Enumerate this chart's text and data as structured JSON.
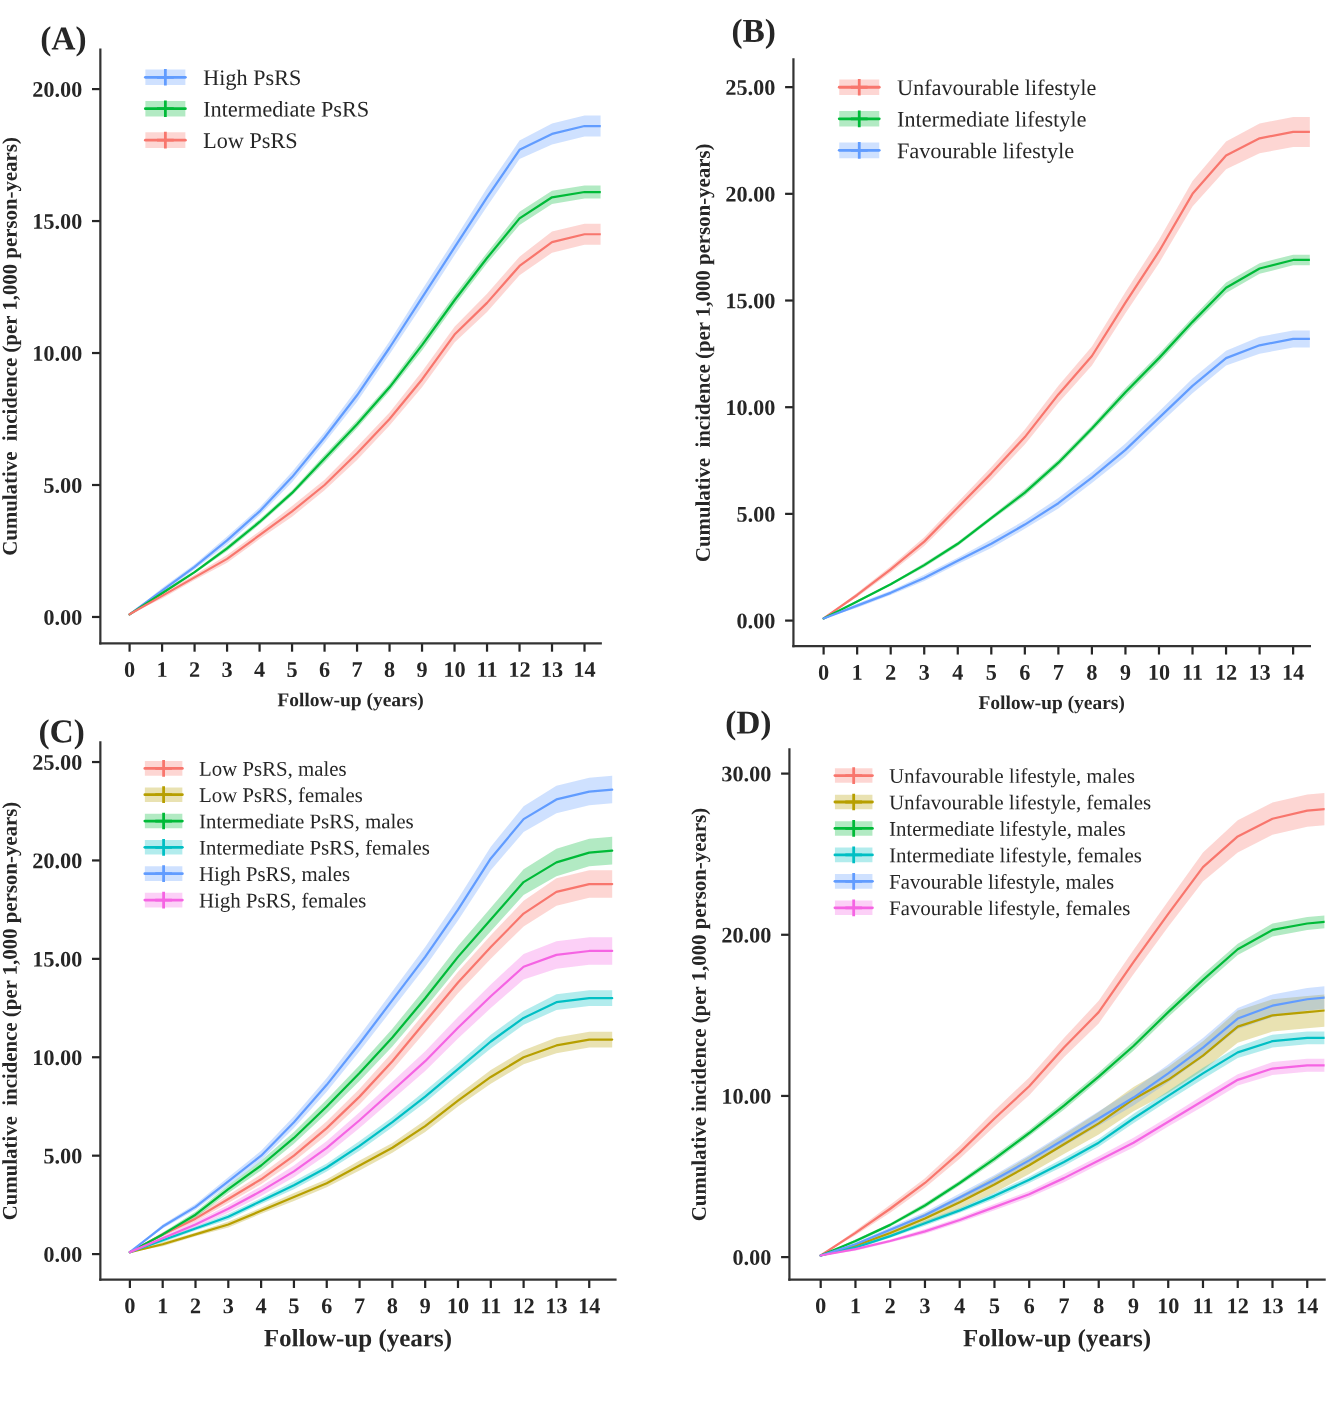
{
  "chart_data": [
    {
      "type": "line",
      "title": "(A)",
      "xlabel": "Follow-up (years)",
      "ylabel": "Cumulative  incidence (per 1,000 person-years)",
      "legend": "top left",
      "x": [
        0,
        1,
        2,
        3,
        4,
        5,
        6,
        7,
        8,
        9,
        10,
        11,
        12,
        13,
        14,
        14.5
      ],
      "xlim": [
        -0.9,
        14.5
      ],
      "xticks": [
        0,
        1,
        2,
        3,
        4,
        5,
        6,
        7,
        8,
        9,
        10,
        11,
        12,
        13,
        14
      ],
      "ylim": [
        -1,
        21.5
      ],
      "yticks": [
        {
          "value": 0,
          "label": "0.00"
        },
        {
          "value": 5,
          "label": "5.00"
        },
        {
          "value": 10,
          "label": "10.00"
        },
        {
          "value": 15,
          "label": "15.00"
        },
        {
          "value": 20,
          "label": "20.00"
        }
      ],
      "series": [
        {
          "name": "High PsRS",
          "color": "#619cff",
          "values": [
            0.1,
            1.0,
            1.9,
            2.9,
            4.0,
            5.3,
            6.8,
            8.4,
            10.2,
            12.1,
            14.0,
            15.9,
            17.7,
            18.3,
            18.6,
            18.6
          ],
          "lower": [
            0.1,
            0.9,
            1.8,
            2.75,
            3.85,
            5.1,
            6.6,
            8.15,
            9.95,
            11.8,
            13.7,
            15.55,
            17.35,
            17.9,
            18.2,
            18.2
          ],
          "upper": [
            0.1,
            1.1,
            2.0,
            3.05,
            4.15,
            5.5,
            7.0,
            8.65,
            10.45,
            12.4,
            14.3,
            16.25,
            18.05,
            18.7,
            19.0,
            19.0
          ]
        },
        {
          "name": "Intermediate PsRS",
          "color": "#00ba38",
          "values": [
            0.1,
            0.9,
            1.7,
            2.6,
            3.6,
            4.7,
            6.0,
            7.3,
            8.7,
            10.3,
            12.0,
            13.6,
            15.1,
            15.9,
            16.1,
            16.1
          ],
          "lower": [
            0.1,
            0.85,
            1.65,
            2.5,
            3.5,
            4.6,
            5.85,
            7.15,
            8.55,
            10.1,
            11.8,
            13.4,
            14.85,
            15.65,
            15.85,
            15.85
          ],
          "upper": [
            0.1,
            0.95,
            1.75,
            2.7,
            3.7,
            4.8,
            6.15,
            7.45,
            8.85,
            10.5,
            12.2,
            13.8,
            15.35,
            16.15,
            16.35,
            16.35
          ]
        },
        {
          "name": "Low PsRS",
          "color": "#f8766d",
          "values": [
            0.1,
            0.8,
            1.5,
            2.2,
            3.1,
            4.0,
            5.0,
            6.2,
            7.5,
            9.0,
            10.7,
            11.9,
            13.3,
            14.2,
            14.5,
            14.5
          ],
          "lower": [
            0.1,
            0.7,
            1.4,
            2.05,
            2.95,
            3.8,
            4.8,
            5.95,
            7.25,
            8.7,
            10.4,
            11.55,
            12.95,
            13.8,
            14.1,
            14.1
          ],
          "upper": [
            0.1,
            0.9,
            1.6,
            2.35,
            3.25,
            4.2,
            5.2,
            6.45,
            7.75,
            9.3,
            11.0,
            12.25,
            13.65,
            14.6,
            14.9,
            14.9
          ]
        }
      ]
    },
    {
      "type": "line",
      "title": "(B)",
      "xlabel": "Follow-up (years)",
      "ylabel": "Cumulative  incidence (per 1,000 person-years)",
      "legend": "top left",
      "x": [
        0,
        1,
        2,
        3,
        4,
        5,
        6,
        7,
        8,
        9,
        10,
        11,
        12,
        13,
        14,
        14.5
      ],
      "xlim": [
        -0.9,
        14.5
      ],
      "xticks": [
        0,
        1,
        2,
        3,
        4,
        5,
        6,
        7,
        8,
        9,
        10,
        11,
        12,
        13,
        14
      ],
      "ylim": [
        -1.2,
        26.3
      ],
      "yticks": [
        {
          "value": 0,
          "label": "0.00"
        },
        {
          "value": 5,
          "label": "5.00"
        },
        {
          "value": 10,
          "label": "10.00"
        },
        {
          "value": 15,
          "label": "15.00"
        },
        {
          "value": 20,
          "label": "20.00"
        },
        {
          "value": 25,
          "label": "25.00"
        }
      ],
      "series": [
        {
          "name": "Unfavourable lifestyle",
          "color": "#f8766d",
          "values": [
            0.1,
            1.2,
            2.4,
            3.7,
            5.3,
            6.9,
            8.6,
            10.6,
            12.4,
            14.9,
            17.3,
            20.0,
            21.8,
            22.6,
            22.9,
            22.9
          ],
          "lower": [
            0.1,
            1.1,
            2.25,
            3.5,
            5.05,
            6.6,
            8.25,
            10.2,
            11.95,
            14.4,
            16.75,
            19.4,
            21.15,
            21.9,
            22.2,
            22.2
          ],
          "upper": [
            0.1,
            1.3,
            2.55,
            3.9,
            5.55,
            7.2,
            8.95,
            11.0,
            12.85,
            15.4,
            17.85,
            20.6,
            22.45,
            23.3,
            23.6,
            23.6
          ]
        },
        {
          "name": "Intermediate lifestyle",
          "color": "#00ba38",
          "values": [
            0.1,
            0.9,
            1.7,
            2.6,
            3.6,
            4.8,
            6.0,
            7.4,
            9.0,
            10.7,
            12.3,
            14.0,
            15.6,
            16.5,
            16.9,
            16.9
          ],
          "lower": [
            0.1,
            0.85,
            1.65,
            2.5,
            3.5,
            4.7,
            5.85,
            7.25,
            8.85,
            10.5,
            12.1,
            13.8,
            15.35,
            16.25,
            16.65,
            16.65
          ],
          "upper": [
            0.1,
            0.95,
            1.75,
            2.7,
            3.7,
            4.9,
            6.15,
            7.55,
            9.15,
            10.9,
            12.5,
            14.2,
            15.85,
            16.75,
            17.15,
            17.15
          ]
        },
        {
          "name": "Favourable lifestyle",
          "color": "#619cff",
          "values": [
            0.1,
            0.7,
            1.3,
            2.0,
            2.8,
            3.6,
            4.5,
            5.5,
            6.7,
            8.0,
            9.5,
            11.0,
            12.3,
            12.9,
            13.2,
            13.2
          ],
          "lower": [
            0.1,
            0.6,
            1.2,
            1.85,
            2.65,
            3.4,
            4.3,
            5.25,
            6.45,
            7.7,
            9.2,
            10.65,
            11.95,
            12.5,
            12.8,
            12.8
          ],
          "upper": [
            0.1,
            0.8,
            1.4,
            2.15,
            2.95,
            3.8,
            4.7,
            5.75,
            6.95,
            8.3,
            9.8,
            11.35,
            12.65,
            13.3,
            13.6,
            13.6
          ]
        }
      ]
    },
    {
      "type": "line",
      "title": "(C)",
      "xlabel": "Follow-up (years)",
      "ylabel": "Cumulative  incidence (per 1,000 person-years)",
      "legend": "top left",
      "x": [
        0,
        1,
        2,
        3,
        4,
        5,
        6,
        7,
        8,
        9,
        10,
        11,
        12,
        13,
        14,
        14.7
      ],
      "xlim": [
        -0.9,
        14.8
      ],
      "xticks": [
        0,
        1,
        2,
        3,
        4,
        5,
        6,
        7,
        8,
        9,
        10,
        11,
        12,
        13,
        14
      ],
      "ylim": [
        -1.3,
        26
      ],
      "yticks": [
        {
          "value": 0,
          "label": "0.00"
        },
        {
          "value": 5,
          "label": "5.00"
        },
        {
          "value": 10,
          "label": "10.00"
        },
        {
          "value": 15,
          "label": "15.00"
        },
        {
          "value": 20,
          "label": "20.00"
        },
        {
          "value": 25,
          "label": "25.00"
        }
      ],
      "series": [
        {
          "name": "Low PsRS, males",
          "color": "#f8766d",
          "values": [
            0.1,
            1.0,
            1.8,
            2.8,
            3.8,
            5.0,
            6.4,
            8.0,
            9.8,
            11.8,
            13.8,
            15.6,
            17.3,
            18.4,
            18.8,
            18.8
          ],
          "lower": [
            0.1,
            0.9,
            1.65,
            2.6,
            3.55,
            4.7,
            6.05,
            7.6,
            9.35,
            11.3,
            13.25,
            15.0,
            16.65,
            17.7,
            18.1,
            18.1
          ],
          "upper": [
            0.1,
            1.1,
            1.95,
            3.0,
            4.05,
            5.3,
            6.75,
            8.4,
            10.25,
            12.3,
            14.35,
            16.2,
            17.95,
            19.1,
            19.5,
            19.5
          ]
        },
        {
          "name": "Low PsRS, females",
          "color": "#b79f00",
          "values": [
            0.1,
            0.5,
            1.0,
            1.5,
            2.2,
            2.9,
            3.6,
            4.5,
            5.4,
            6.5,
            7.8,
            9.0,
            10.0,
            10.6,
            10.9,
            10.9
          ],
          "lower": [
            0.1,
            0.4,
            0.9,
            1.35,
            2.05,
            2.7,
            3.4,
            4.25,
            5.15,
            6.2,
            7.5,
            8.65,
            9.65,
            10.2,
            10.5,
            10.5
          ],
          "upper": [
            0.1,
            0.6,
            1.1,
            1.65,
            2.35,
            3.1,
            3.8,
            4.75,
            5.65,
            6.8,
            8.1,
            9.35,
            10.35,
            11.0,
            11.3,
            11.3
          ]
        },
        {
          "name": "Intermediate PsRS, males",
          "color": "#00ba38",
          "values": [
            0.1,
            1.0,
            2.0,
            3.3,
            4.5,
            5.9,
            7.5,
            9.2,
            11.0,
            13.0,
            15.1,
            17.0,
            18.9,
            19.9,
            20.4,
            20.5
          ],
          "lower": [
            0.1,
            0.9,
            1.85,
            3.1,
            4.25,
            5.6,
            7.15,
            8.8,
            10.55,
            12.5,
            14.55,
            16.4,
            18.25,
            19.2,
            19.7,
            19.8
          ],
          "upper": [
            0.1,
            1.1,
            2.15,
            3.5,
            4.75,
            6.2,
            7.85,
            9.6,
            11.45,
            13.5,
            15.65,
            17.6,
            19.55,
            20.6,
            21.1,
            21.2
          ]
        },
        {
          "name": "Intermediate PsRS, females",
          "color": "#00bfc4",
          "values": [
            0.1,
            0.7,
            1.3,
            1.9,
            2.7,
            3.5,
            4.4,
            5.5,
            6.7,
            8.0,
            9.4,
            10.8,
            12.0,
            12.8,
            13.0,
            13.0
          ],
          "lower": [
            0.1,
            0.6,
            1.2,
            1.75,
            2.55,
            3.3,
            4.2,
            5.25,
            6.45,
            7.7,
            9.1,
            10.45,
            11.65,
            12.4,
            12.6,
            12.6
          ],
          "upper": [
            0.1,
            0.8,
            1.4,
            2.05,
            2.85,
            3.7,
            4.6,
            5.75,
            6.95,
            8.3,
            9.7,
            11.15,
            12.35,
            13.2,
            13.4,
            13.4
          ]
        },
        {
          "name": "High PsRS, males",
          "color": "#619cff",
          "values": [
            0.1,
            1.4,
            2.4,
            3.7,
            5.0,
            6.7,
            8.6,
            10.7,
            12.9,
            15.1,
            17.5,
            20.1,
            22.1,
            23.1,
            23.5,
            23.6
          ],
          "lower": [
            0.1,
            1.3,
            2.25,
            3.5,
            4.75,
            6.4,
            8.25,
            10.3,
            12.45,
            14.6,
            16.95,
            19.5,
            21.45,
            22.4,
            22.8,
            22.9
          ],
          "upper": [
            0.1,
            1.5,
            2.55,
            3.9,
            5.25,
            7.0,
            8.95,
            11.1,
            13.35,
            15.6,
            18.05,
            20.7,
            22.75,
            23.8,
            24.2,
            24.3
          ]
        },
        {
          "name": "High PsRS, females",
          "color": "#f564e3",
          "values": [
            0.1,
            0.8,
            1.5,
            2.3,
            3.2,
            4.2,
            5.4,
            6.8,
            8.3,
            9.8,
            11.5,
            13.1,
            14.6,
            15.2,
            15.4,
            15.4
          ],
          "lower": [
            0.1,
            0.7,
            1.35,
            2.1,
            2.95,
            3.9,
            5.05,
            6.4,
            7.85,
            9.3,
            10.95,
            12.5,
            13.95,
            14.5,
            14.7,
            14.7
          ],
          "upper": [
            0.1,
            0.9,
            1.65,
            2.5,
            3.45,
            4.5,
            5.75,
            7.2,
            8.75,
            10.3,
            12.05,
            13.7,
            15.25,
            15.9,
            16.1,
            16.1
          ]
        }
      ]
    },
    {
      "type": "line",
      "title": "(D)",
      "xlabel": "Follow-up (years)",
      "ylabel": "Cumulative incidence (per 1,000 person-years)",
      "legend": "top left",
      "x": [
        0,
        1,
        2,
        3,
        4,
        5,
        6,
        7,
        8,
        9,
        10,
        11,
        12,
        13,
        14,
        14.5
      ],
      "xlim": [
        -0.9,
        14.5
      ],
      "xticks": [
        0,
        1,
        2,
        3,
        4,
        5,
        6,
        7,
        8,
        9,
        10,
        11,
        12,
        13,
        14
      ],
      "ylim": [
        -1.4,
        31.5
      ],
      "yticks": [
        {
          "value": 0,
          "label": "0.00"
        },
        {
          "value": 10,
          "label": "10.00"
        },
        {
          "value": 20,
          "label": "20.00"
        },
        {
          "value": 30,
          "label": "30.00"
        }
      ],
      "series": [
        {
          "name": "Unfavourable lifestyle, males",
          "color": "#f8766d",
          "values": [
            0.1,
            1.5,
            3.0,
            4.6,
            6.5,
            8.6,
            10.6,
            13.0,
            15.2,
            18.3,
            21.3,
            24.2,
            26.1,
            27.2,
            27.7,
            27.8
          ],
          "lower": [
            0.1,
            1.35,
            2.75,
            4.3,
            6.1,
            8.1,
            10.05,
            12.4,
            14.5,
            17.55,
            20.5,
            23.3,
            25.1,
            26.2,
            26.7,
            26.8
          ],
          "upper": [
            0.1,
            1.65,
            3.25,
            4.9,
            6.9,
            9.1,
            11.15,
            13.6,
            15.9,
            19.05,
            22.1,
            25.1,
            27.1,
            28.2,
            28.7,
            28.8
          ]
        },
        {
          "name": "Unfavourable lifestyle, females",
          "color": "#b79f00",
          "values": [
            0.1,
            0.7,
            1.5,
            2.4,
            3.4,
            4.5,
            5.7,
            7.0,
            8.3,
            9.8,
            11.0,
            12.5,
            14.3,
            15.0,
            15.2,
            15.3
          ],
          "lower": [
            0.1,
            0.55,
            1.25,
            2.1,
            3.0,
            4.0,
            5.15,
            6.4,
            7.6,
            9.05,
            10.2,
            11.6,
            13.3,
            14.0,
            14.2,
            14.3
          ],
          "upper": [
            0.1,
            0.85,
            1.75,
            2.7,
            3.8,
            5.0,
            6.25,
            7.6,
            9.0,
            10.55,
            11.8,
            13.4,
            15.3,
            16.0,
            16.2,
            16.3
          ]
        },
        {
          "name": "Intermediate lifestyle, males",
          "color": "#00ba38",
          "values": [
            0.1,
            1.0,
            2.0,
            3.2,
            4.6,
            6.1,
            7.7,
            9.4,
            11.2,
            13.1,
            15.2,
            17.2,
            19.1,
            20.3,
            20.7,
            20.8
          ],
          "lower": [
            0.1,
            0.9,
            1.9,
            3.05,
            4.45,
            5.9,
            7.5,
            9.15,
            10.95,
            12.8,
            14.9,
            16.85,
            18.75,
            19.9,
            20.3,
            20.4
          ],
          "upper": [
            0.1,
            1.1,
            2.1,
            3.35,
            4.75,
            6.3,
            7.9,
            9.65,
            11.45,
            13.4,
            15.5,
            17.55,
            19.45,
            20.7,
            21.1,
            21.2
          ]
        },
        {
          "name": "Intermediate lifestyle, females",
          "color": "#00bfc4",
          "values": [
            0.1,
            0.6,
            1.3,
            2.1,
            2.9,
            3.8,
            4.8,
            5.9,
            7.1,
            8.6,
            10.0,
            11.4,
            12.7,
            13.4,
            13.6,
            13.6
          ],
          "lower": [
            0.1,
            0.5,
            1.2,
            1.95,
            2.75,
            3.6,
            4.6,
            5.65,
            6.85,
            8.3,
            9.7,
            11.05,
            12.35,
            13.0,
            13.2,
            13.2
          ],
          "upper": [
            0.1,
            0.7,
            1.4,
            2.25,
            3.05,
            4.0,
            5.0,
            6.15,
            7.35,
            8.9,
            10.3,
            11.75,
            13.05,
            13.8,
            14.0,
            14.0
          ]
        },
        {
          "name": "Favourable lifestyle, males",
          "color": "#619cff",
          "values": [
            0.1,
            0.8,
            1.7,
            2.6,
            3.7,
            4.8,
            6.0,
            7.3,
            8.6,
            9.9,
            11.4,
            13.0,
            14.8,
            15.6,
            16.0,
            16.1
          ],
          "lower": [
            0.1,
            0.7,
            1.55,
            2.4,
            3.45,
            4.5,
            5.65,
            6.9,
            8.15,
            9.4,
            10.85,
            12.4,
            14.15,
            14.9,
            15.3,
            15.4
          ],
          "upper": [
            0.1,
            0.9,
            1.85,
            2.8,
            3.95,
            5.1,
            6.35,
            7.7,
            9.05,
            10.4,
            11.95,
            13.6,
            15.45,
            16.3,
            16.7,
            16.8
          ]
        },
        {
          "name": "Favourable lifestyle, females",
          "color": "#f564e3",
          "values": [
            0.1,
            0.5,
            1.0,
            1.6,
            2.3,
            3.1,
            3.9,
            4.9,
            6.0,
            7.1,
            8.4,
            9.7,
            11.0,
            11.7,
            11.9,
            11.9
          ],
          "lower": [
            0.1,
            0.4,
            0.9,
            1.45,
            2.15,
            2.9,
            3.7,
            4.65,
            5.75,
            6.8,
            8.1,
            9.35,
            10.65,
            11.3,
            11.5,
            11.5
          ],
          "upper": [
            0.1,
            0.6,
            1.1,
            1.75,
            2.45,
            3.3,
            4.1,
            5.15,
            6.25,
            7.4,
            8.7,
            10.05,
            11.35,
            12.1,
            12.3,
            12.3
          ]
        }
      ]
    }
  ]
}
